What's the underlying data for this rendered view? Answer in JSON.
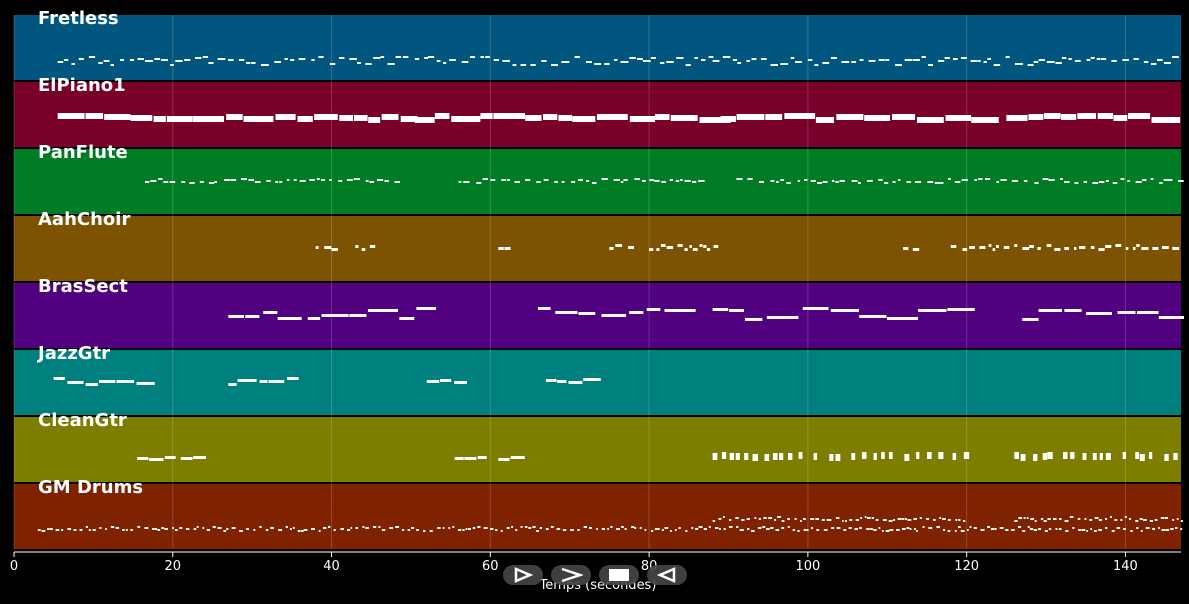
{
  "tracks": [
    {
      "name": "Fretless",
      "color": "#00567f"
    },
    {
      "name": "ElPiano1",
      "color": "#7a002c"
    },
    {
      "name": "PanFlute",
      "color": "#007d24"
    },
    {
      "name": "AahChoir",
      "color": "#7d5200"
    },
    {
      "name": "BrasSect",
      "color": "#510080"
    },
    {
      "name": "JazzGtr",
      "color": "#007f7f"
    },
    {
      "name": "CleanGtr",
      "color": "#7d7d00"
    },
    {
      "name": "GM Drums",
      "color": "#7f2200"
    }
  ],
  "axis": {
    "ticks": [
      "0",
      "20",
      "40",
      "60",
      "80",
      "100",
      "120",
      "140"
    ],
    "xlabel": "Temps (secondes)",
    "xlim": [
      0,
      147
    ]
  },
  "controls": [
    {
      "name": "play-button",
      "icon": "play-outline-icon"
    },
    {
      "name": "fast-forward-button",
      "icon": "chevron-right-icon"
    },
    {
      "name": "stop-button",
      "icon": "stop-square-icon"
    },
    {
      "name": "rewind-button",
      "icon": "play-reverse-icon"
    }
  ]
}
